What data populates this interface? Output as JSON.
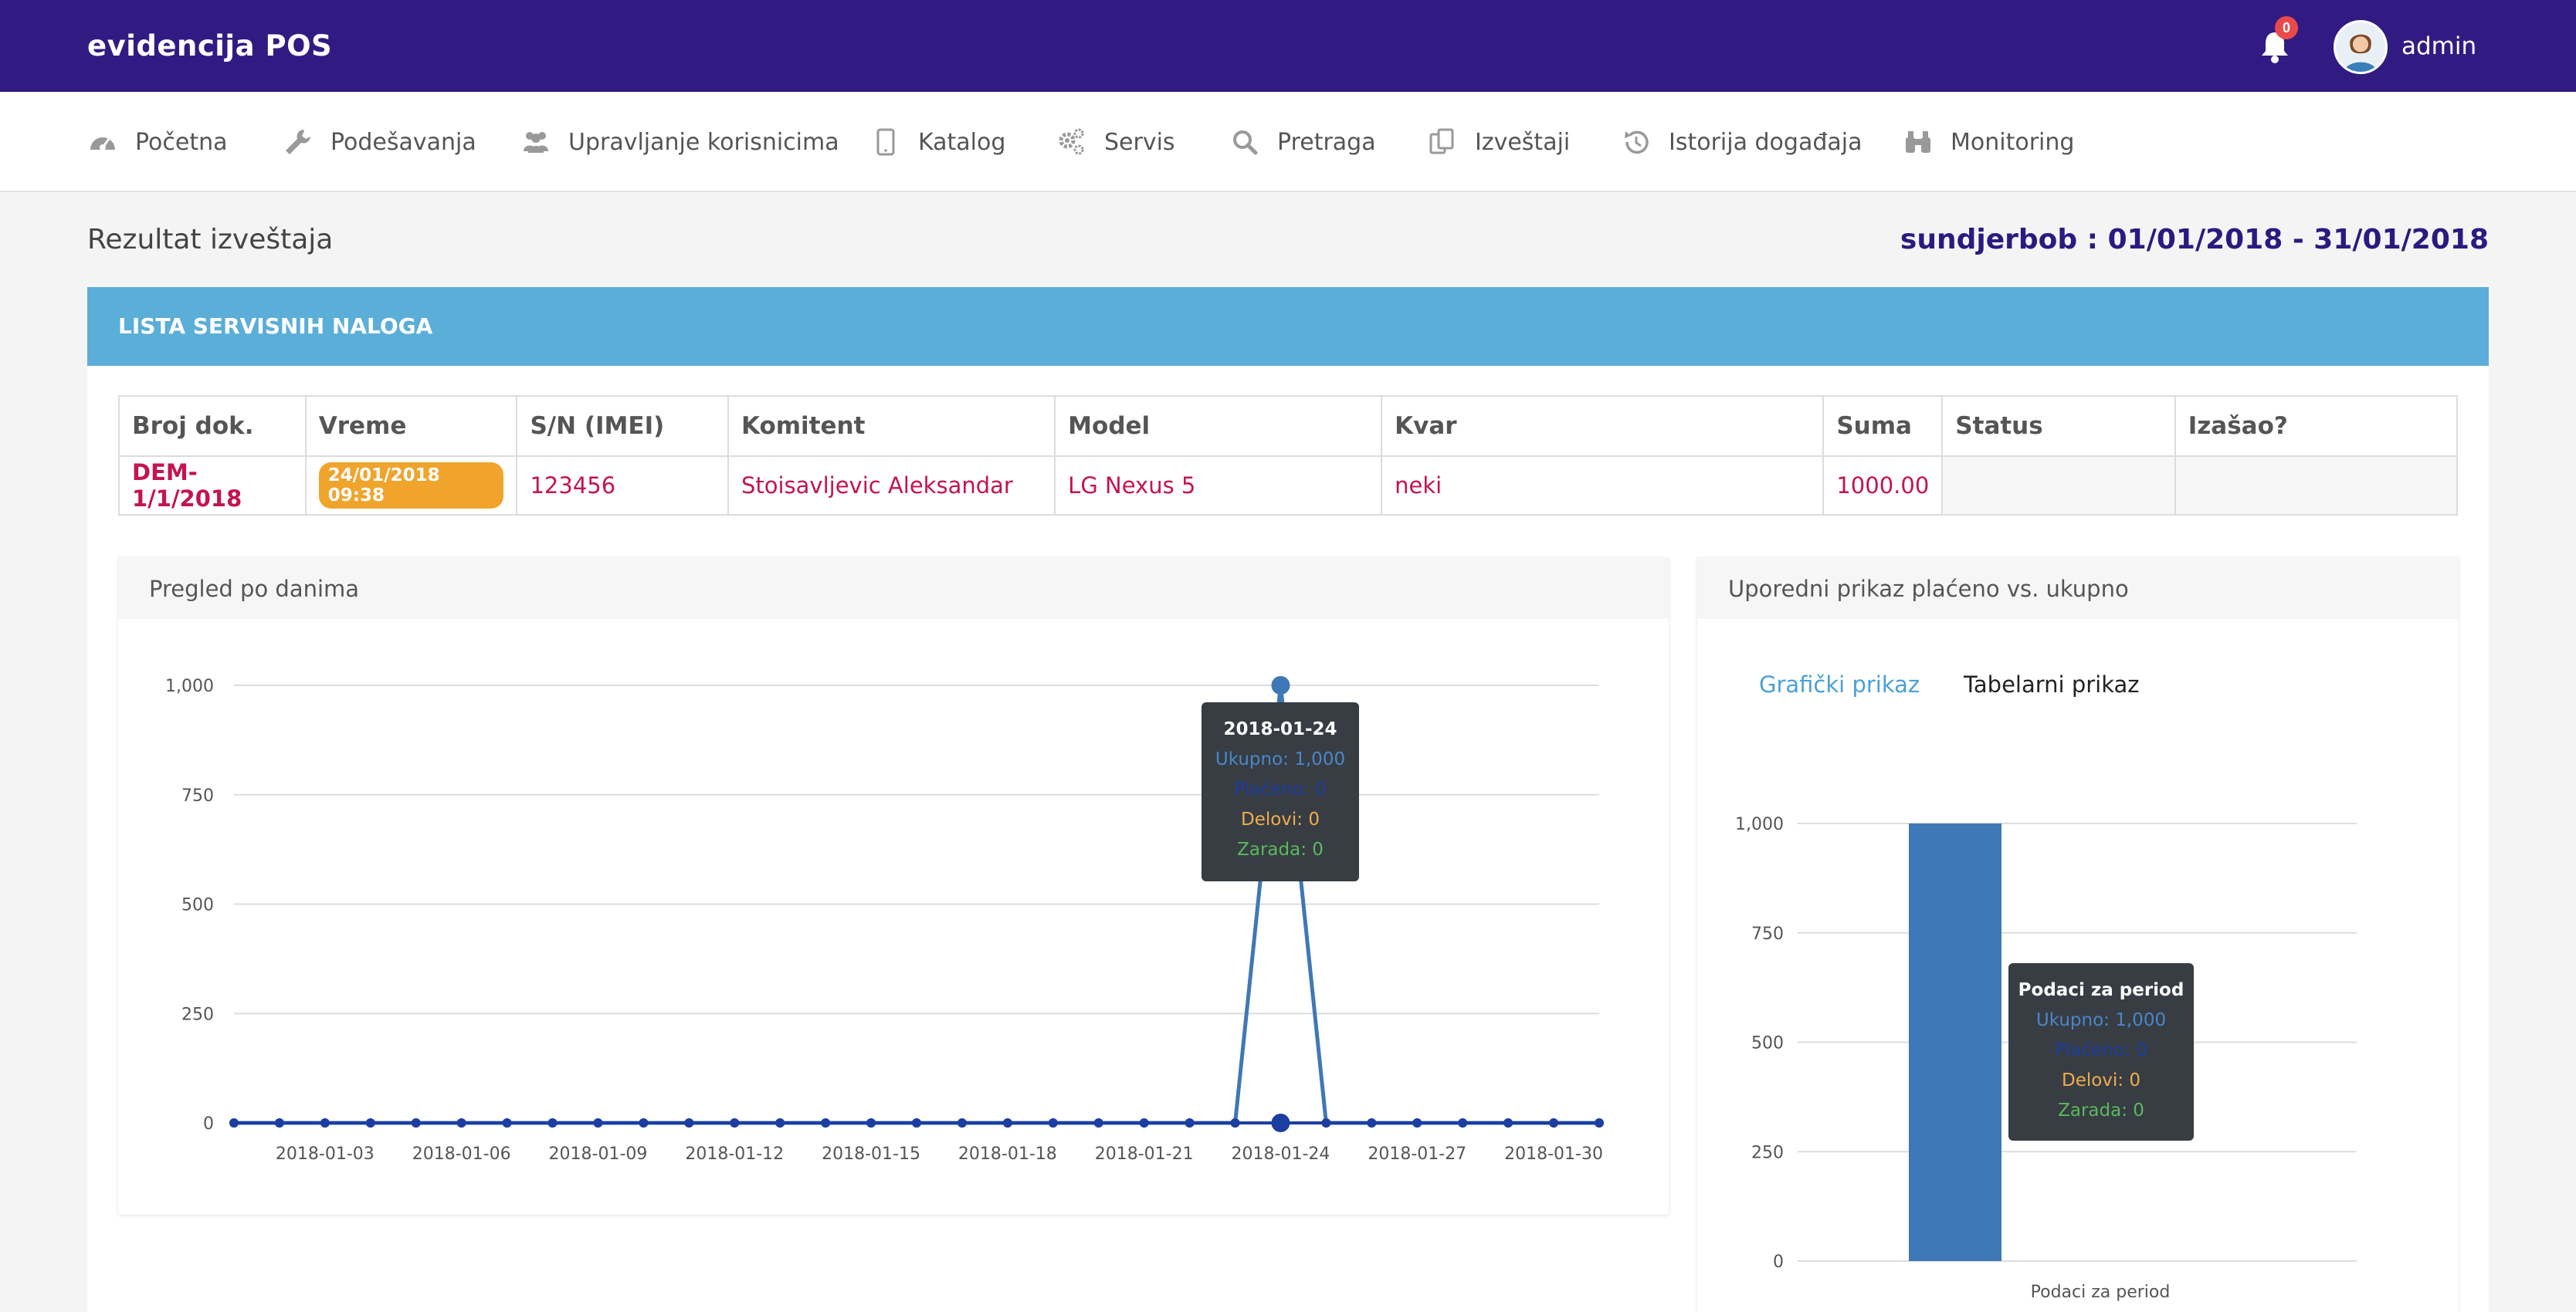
{
  "app": {
    "brand": "evidencija POS"
  },
  "header": {
    "notifications_count": "0",
    "user_name": "admin"
  },
  "nav": [
    {
      "label": "Početna",
      "icon": "dashboard-icon"
    },
    {
      "label": "Podešavanja",
      "icon": "wrench-icon"
    },
    {
      "label": "Upravljanje korisnicima",
      "icon": "users-icon"
    },
    {
      "label": "Katalog",
      "icon": "tablet-icon"
    },
    {
      "label": "Servis",
      "icon": "gears-icon"
    },
    {
      "label": "Pretraga",
      "icon": "search-icon"
    },
    {
      "label": "Izveštaji",
      "icon": "copy-icon"
    },
    {
      "label": "Istorija događaja",
      "icon": "history-icon"
    },
    {
      "label": "Monitoring",
      "icon": "binoculars-icon"
    }
  ],
  "page": {
    "title": "Rezultat izveštaja",
    "range": "sundjerbob : 01/01/2018 - 31/01/2018"
  },
  "panel": {
    "title": "LISTA SERVISNIH NALOGA"
  },
  "table": {
    "columns": [
      "Broj dok.",
      "Vreme",
      "S/N (IMEI)",
      "Komitent",
      "Model",
      "Kvar",
      "Suma",
      "Status",
      "Izašao?"
    ],
    "rows": [
      {
        "doc": "DEM-1/1/2018",
        "time": "24/01/2018 09:38",
        "imei": "123456",
        "client": "Stoisavljevic Aleksandar",
        "model": "LG Nexus 5",
        "fault": "neki",
        "sum": "1000.00",
        "status": "",
        "exited": ""
      }
    ]
  },
  "daily_card": {
    "title": "Pregled po danima",
    "tooltip": {
      "title": "2018-01-24",
      "ukupno": "Ukupno: 1,000",
      "placeno": "Plaćeno: 0",
      "delovi": "Delovi: 0",
      "zarada": "Zarada: 0"
    }
  },
  "compare_card": {
    "title": "Uporedni prikaz plaćeno vs. ukupno",
    "tab_active": "Grafički prikaz",
    "tab_other": "Tabelarni prikaz",
    "tooltip": {
      "title": "Podaci za period",
      "ukupno": "Ukupno: 1,000",
      "placeno": "Plaćeno: 0",
      "delovi": "Delovi: 0",
      "zarada": "Zarada: 0"
    }
  },
  "colors": {
    "topbar": "#311b83",
    "panel_head": "#5aaed8",
    "accent_text": "#c4144e",
    "series_ukupno": "#3f78b6",
    "series_placeno": "#1c3ea0",
    "delovi": "#f0ad4e",
    "zarada": "#5cb85c"
  },
  "chart_data": [
    {
      "type": "line",
      "x": [
        "2018-01-01",
        "2018-01-02",
        "2018-01-03",
        "2018-01-04",
        "2018-01-05",
        "2018-01-06",
        "2018-01-07",
        "2018-01-08",
        "2018-01-09",
        "2018-01-10",
        "2018-01-11",
        "2018-01-12",
        "2018-01-13",
        "2018-01-14",
        "2018-01-15",
        "2018-01-16",
        "2018-01-17",
        "2018-01-18",
        "2018-01-19",
        "2018-01-20",
        "2018-01-21",
        "2018-01-22",
        "2018-01-23",
        "2018-01-24",
        "2018-01-25",
        "2018-01-26",
        "2018-01-27",
        "2018-01-28",
        "2018-01-29",
        "2018-01-30",
        "2018-01-31"
      ],
      "x_tick_labels": [
        "2018-01-03",
        "2018-01-06",
        "2018-01-09",
        "2018-01-12",
        "2018-01-15",
        "2018-01-18",
        "2018-01-21",
        "2018-01-24",
        "2018-01-27",
        "2018-01-30"
      ],
      "y_tick_labels": [
        "0",
        "250",
        "500",
        "750",
        "1,000"
      ],
      "series": [
        {
          "name": "Ukupno",
          "values": [
            0,
            0,
            0,
            0,
            0,
            0,
            0,
            0,
            0,
            0,
            0,
            0,
            0,
            0,
            0,
            0,
            0,
            0,
            0,
            0,
            0,
            0,
            0,
            1000,
            0,
            0,
            0,
            0,
            0,
            0,
            0
          ]
        },
        {
          "name": "Plaćeno",
          "values": [
            0,
            0,
            0,
            0,
            0,
            0,
            0,
            0,
            0,
            0,
            0,
            0,
            0,
            0,
            0,
            0,
            0,
            0,
            0,
            0,
            0,
            0,
            0,
            0,
            0,
            0,
            0,
            0,
            0,
            0,
            0
          ]
        }
      ],
      "ylim": [
        0,
        1000
      ],
      "grid": true
    },
    {
      "type": "bar",
      "categories": [
        "Podaci za period"
      ],
      "y_tick_labels": [
        "0",
        "250",
        "500",
        "750",
        "1,000"
      ],
      "series": [
        {
          "name": "Ukupno",
          "values": [
            1000
          ]
        },
        {
          "name": "Plaćeno",
          "values": [
            0
          ]
        }
      ],
      "ylim": [
        0,
        1000
      ],
      "grid": true
    }
  ]
}
